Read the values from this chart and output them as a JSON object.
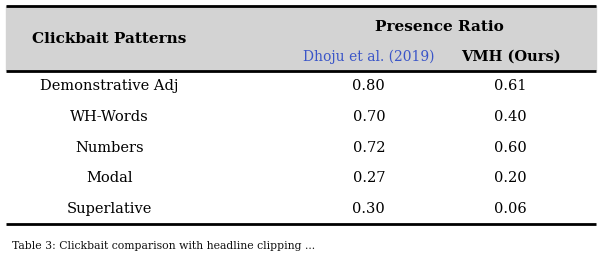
{
  "col0_header": "Clickbait Patterns",
  "group_header": "Presence Ratio",
  "col1_header": "Dhoju et al. (2019)",
  "col2_header": "VMH (Ours)",
  "rows": [
    [
      "Demonstrative Adj",
      "0.80",
      "0.61"
    ],
    [
      "WH-Words",
      "0.70",
      "0.40"
    ],
    [
      "Numbers",
      "0.72",
      "0.60"
    ],
    [
      "Modal",
      "0.27",
      "0.20"
    ],
    [
      "Superlative",
      "0.30",
      "0.06"
    ]
  ],
  "header_bg": "#d3d3d3",
  "body_bg": "#ffffff",
  "group_header_color": "#000000",
  "col1_header_color": "#3a55c8",
  "col2_header_color": "#000000",
  "body_text_color": "#000000",
  "caption": "Table 3: Clickbait comparison with headline clipping ...",
  "fig_width": 6.02,
  "fig_height": 2.58,
  "dpi": 100
}
